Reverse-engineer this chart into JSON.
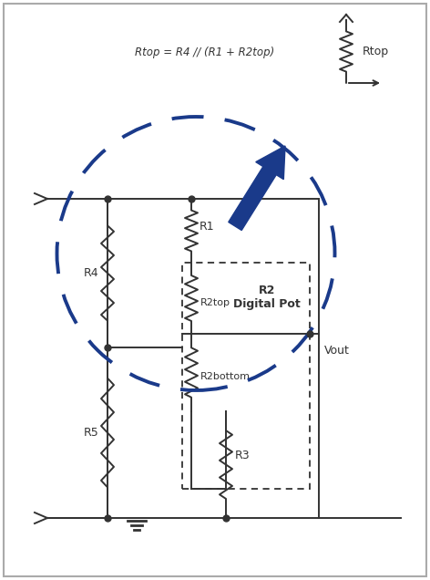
{
  "bg_color": "#ffffff",
  "border_color": "#aaaaaa",
  "line_color": "#333333",
  "dashed_color": "#1a3a8a",
  "arrow_color": "#1a3a8a",
  "text_equation": "Rtop = R4 // (R1 + R2top)",
  "label_R1": "R1",
  "label_R2": "R2\nDigital Pot",
  "label_R2top": "R2top",
  "label_R2bottom": "R2bottom",
  "label_R3": "R3",
  "label_R4": "R4",
  "label_R5": "R5",
  "label_Rtop": "Rtop",
  "label_Vout": "Vout",
  "figsize": [
    4.72,
    6.36
  ],
  "dpi": 100
}
